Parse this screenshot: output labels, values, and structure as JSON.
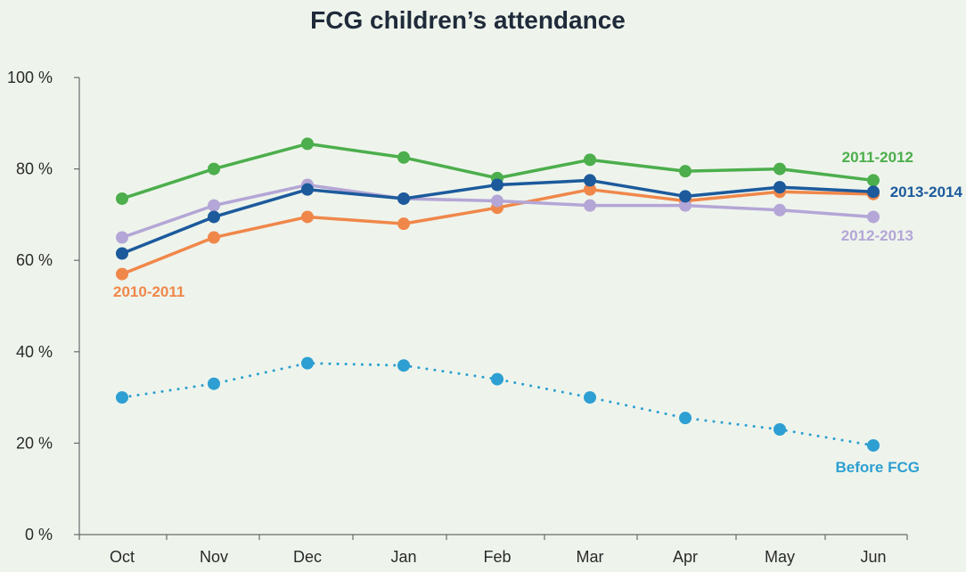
{
  "chart_data": {
    "type": "line",
    "title": "FCG children’s attendance",
    "xlabel": "",
    "ylabel": "",
    "categories": [
      "Oct",
      "Nov",
      "Dec",
      "Jan",
      "Feb",
      "Mar",
      "Apr",
      "May",
      "Jun"
    ],
    "ylim": [
      0,
      100
    ],
    "yticks": [
      0,
      20,
      40,
      60,
      80,
      100
    ],
    "ytick_labels": [
      "0 %",
      "20 %",
      "40 %",
      "60 %",
      "80 %",
      "100 %"
    ],
    "grid": false,
    "series": [
      {
        "name": "2010-2011",
        "color": "#f0874a",
        "style": "solid",
        "label": "2010-2011",
        "values": [
          57,
          65,
          69.5,
          68,
          71.5,
          75.5,
          73,
          75,
          74.5
        ]
      },
      {
        "name": "2011-2012",
        "color": "#4cae4c",
        "style": "solid",
        "label": "2011-2012",
        "values": [
          73.5,
          80,
          85.5,
          82.5,
          78,
          82,
          79.5,
          80,
          77.5
        ]
      },
      {
        "name": "2012-2013",
        "color": "#b4a6d6",
        "style": "solid",
        "label": "2012-2013",
        "values": [
          65,
          72,
          76.5,
          73.5,
          73,
          72,
          72,
          71,
          69.5
        ]
      },
      {
        "name": "2013-2014",
        "color": "#1c5a9c",
        "style": "solid",
        "label": "2013-2014",
        "values": [
          61.5,
          69.5,
          75.5,
          73.5,
          76.5,
          77.5,
          74,
          76,
          75
        ]
      },
      {
        "name": "Before FCG",
        "color": "#2d9fd2",
        "style": "dotted",
        "label": "Before FCG",
        "values": [
          30,
          33,
          37.5,
          37,
          34,
          30,
          25.5,
          23,
          19.5
        ]
      }
    ]
  }
}
